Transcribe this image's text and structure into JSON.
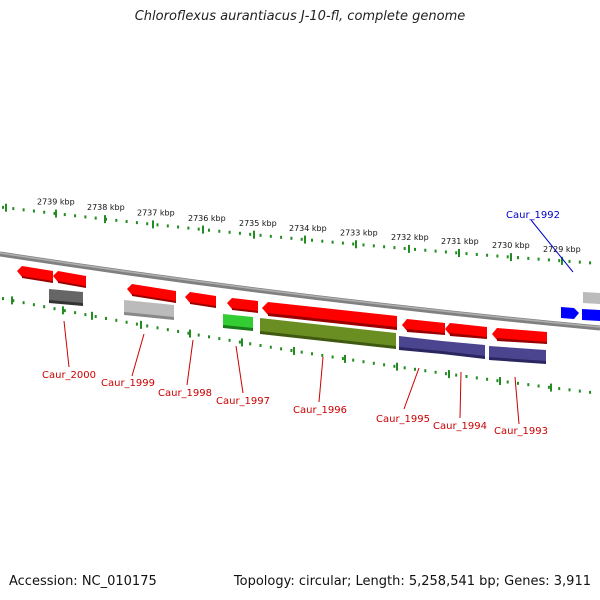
{
  "title": "Chloroflexus aurantiacus J-10-fl, complete genome",
  "footer": {
    "accession": "Accession: NC_010175",
    "summary": "Topology: circular; Length: 5,258,541 bp; Genes: 3,911"
  },
  "scale": {
    "unit": "kbp",
    "labels": [
      "2739 kbp",
      "2738 kbp",
      "2737 kbp",
      "2736 kbp",
      "2735 kbp",
      "2734 kbp",
      "2733 kbp",
      "2732 kbp",
      "2731 kbp",
      "2730 kbp",
      "2729 kbp"
    ]
  },
  "genes": [
    {
      "id": "Caur_2000",
      "color": "#cc0000"
    },
    {
      "id": "Caur_1999",
      "color": "#cc0000"
    },
    {
      "id": "Caur_1998",
      "color": "#cc0000"
    },
    {
      "id": "Caur_1997",
      "color": "#cc0000"
    },
    {
      "id": "Caur_1996",
      "color": "#cc0000"
    },
    {
      "id": "Caur_1995",
      "color": "#cc0000"
    },
    {
      "id": "Caur_1994",
      "color": "#cc0000"
    },
    {
      "id": "Caur_1993",
      "color": "#cc0000"
    },
    {
      "id": "Caur_1992",
      "color": "#0000cc"
    }
  ],
  "colors": {
    "forward_gene": "#ff0000",
    "reverse_gene_highlight": "#0000ff",
    "backbone": "#808080",
    "ticks": "#228b22",
    "cog_dark_gray": "#666666",
    "cog_light_gray": "#bbbbbb",
    "cog_green": "#33cc33",
    "cog_olive": "#6b8e23",
    "cog_slate": "#4b4590"
  }
}
